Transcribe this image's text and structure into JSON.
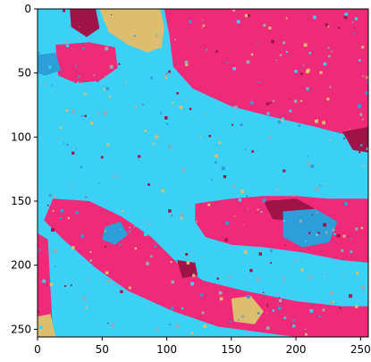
{
  "chart_data": {
    "type": "heatmap",
    "title": "",
    "xlabel": "",
    "ylabel": "",
    "xlim": [
      0,
      256
    ],
    "ylim": [
      256,
      0
    ],
    "x_ticks": [
      0,
      50,
      100,
      150,
      200,
      250
    ],
    "y_ticks": [
      0,
      50,
      100,
      150,
      200,
      250
    ],
    "grid": false,
    "colors": {
      "cyan": "#3bd0f5",
      "pink": "#ef2a78",
      "crimson": "#a01346",
      "tan": "#ddbe6e",
      "blue": "#2d9fd8",
      "gray": "#9aa8b0"
    },
    "regions": [
      {
        "class": "pink",
        "points": [
          [
            98,
            0
          ],
          [
            256,
            0
          ],
          [
            256,
            105
          ],
          [
            238,
            98
          ],
          [
            215,
            92
          ],
          [
            185,
            85
          ],
          [
            150,
            76
          ],
          [
            120,
            62
          ],
          [
            105,
            45
          ],
          [
            102,
            20
          ]
        ]
      },
      {
        "class": "pink",
        "points": [
          [
            12,
            148
          ],
          [
            40,
            150
          ],
          [
            65,
            162
          ],
          [
            88,
            178
          ],
          [
            108,
            198
          ],
          [
            128,
            212
          ],
          [
            160,
            220
          ],
          [
            200,
            228
          ],
          [
            235,
            232
          ],
          [
            256,
            232
          ],
          [
            256,
            256
          ],
          [
            200,
            256
          ],
          [
            140,
            248
          ],
          [
            105,
            236
          ],
          [
            70,
            220
          ],
          [
            45,
            202
          ],
          [
            20,
            180
          ],
          [
            5,
            165
          ]
        ]
      },
      {
        "class": "pink",
        "points": [
          [
            0,
            175
          ],
          [
            8,
            180
          ],
          [
            12,
            256
          ],
          [
            0,
            256
          ]
        ]
      },
      {
        "class": "pink",
        "points": [
          [
            122,
            152
          ],
          [
            150,
            148
          ],
          [
            175,
            146
          ],
          [
            200,
            146
          ],
          [
            225,
            148
          ],
          [
            256,
            148
          ],
          [
            256,
            198
          ],
          [
            235,
            196
          ],
          [
            205,
            190
          ],
          [
            175,
            186
          ],
          [
            150,
            184
          ],
          [
            130,
            178
          ],
          [
            122,
            166
          ]
        ]
      },
      {
        "class": "pink",
        "points": [
          [
            14,
            28
          ],
          [
            40,
            26
          ],
          [
            60,
            30
          ],
          [
            62,
            46
          ],
          [
            48,
            56
          ],
          [
            30,
            58
          ],
          [
            16,
            52
          ]
        ]
      },
      {
        "class": "tan",
        "points": [
          [
            48,
            0
          ],
          [
            95,
            0
          ],
          [
            98,
            14
          ],
          [
            96,
            30
          ],
          [
            85,
            34
          ],
          [
            70,
            28
          ],
          [
            55,
            18
          ]
        ]
      },
      {
        "class": "tan",
        "points": [
          [
            0,
            240
          ],
          [
            10,
            238
          ],
          [
            14,
            256
          ],
          [
            0,
            256
          ]
        ]
      },
      {
        "class": "tan",
        "points": [
          [
            150,
            226
          ],
          [
            165,
            224
          ],
          [
            175,
            236
          ],
          [
            168,
            246
          ],
          [
            152,
            244
          ]
        ]
      },
      {
        "class": "crimson",
        "points": [
          [
            25,
            0
          ],
          [
            45,
            0
          ],
          [
            48,
            15
          ],
          [
            38,
            22
          ],
          [
            26,
            14
          ]
        ]
      },
      {
        "class": "crimson",
        "points": [
          [
            175,
            150
          ],
          [
            200,
            148
          ],
          [
            215,
            156
          ],
          [
            205,
            166
          ],
          [
            182,
            164
          ]
        ]
      },
      {
        "class": "crimson",
        "points": [
          [
            108,
            196
          ],
          [
            122,
            198
          ],
          [
            124,
            208
          ],
          [
            112,
            210
          ]
        ]
      },
      {
        "class": "blue",
        "points": [
          [
            190,
            158
          ],
          [
            215,
            156
          ],
          [
            232,
            166
          ],
          [
            226,
            182
          ],
          [
            205,
            186
          ],
          [
            190,
            178
          ]
        ]
      },
      {
        "class": "blue",
        "points": [
          [
            52,
            170
          ],
          [
            64,
            166
          ],
          [
            70,
            176
          ],
          [
            60,
            184
          ],
          [
            50,
            180
          ]
        ]
      },
      {
        "class": "blue",
        "points": [
          [
            0,
            36
          ],
          [
            14,
            34
          ],
          [
            18,
            48
          ],
          [
            6,
            52
          ],
          [
            0,
            50
          ]
        ]
      },
      {
        "class": "crimson",
        "points": [
          [
            236,
            96
          ],
          [
            256,
            92
          ],
          [
            256,
            112
          ],
          [
            244,
            110
          ]
        ]
      }
    ]
  }
}
